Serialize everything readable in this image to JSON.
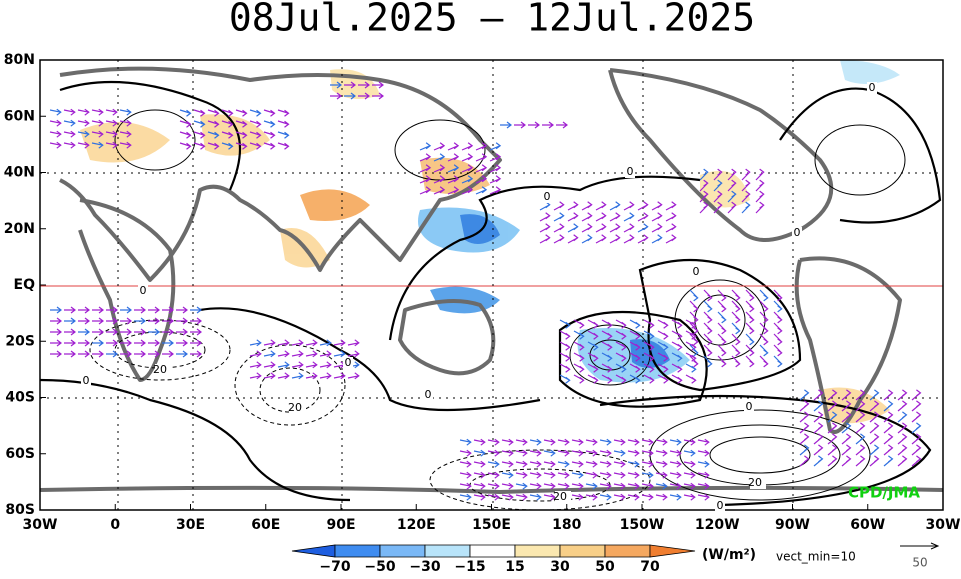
{
  "title": "08Jul.2025 – 12Jul.2025",
  "lat_labels": [
    "80N",
    "60N",
    "40N",
    "20N",
    "EQ",
    "20S",
    "40S",
    "60S",
    "80S"
  ],
  "lon_labels": [
    "30W",
    "0",
    "30E",
    "60E",
    "90E",
    "120E",
    "150E",
    "180",
    "150W",
    "120W",
    "90W",
    "60W",
    "30W"
  ],
  "colorbar_labels": [
    "−70",
    "−50",
    "−30",
    "−15",
    "15",
    "30",
    "50",
    "70"
  ],
  "units": "(W/m²)",
  "vector_note": "vect_min=10",
  "reference_vector_label": "50",
  "credit": "CPD/JMA",
  "contour_labels": [
    "0",
    "0",
    "20",
    "0",
    "20",
    "0",
    "0",
    "0",
    "0",
    "0",
    "0",
    "0",
    "20",
    "20",
    "0"
  ]
}
